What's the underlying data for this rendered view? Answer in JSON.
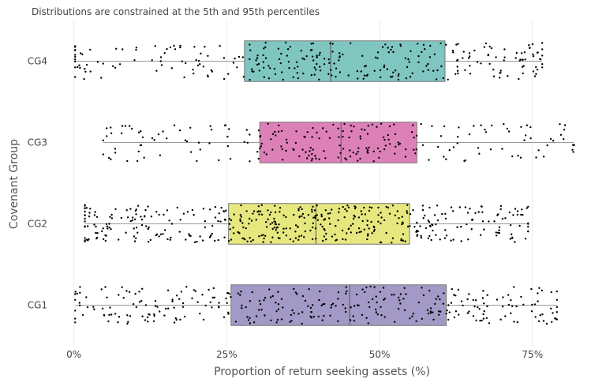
{
  "chart_data": {
    "type": "box",
    "orientation": "horizontal",
    "title": "Distributions are constrained at the 5th and 95th percentiles",
    "xlabel": "Proportion of return seeking assets (%)",
    "ylabel": "Covenant Group",
    "xlim": [
      -9.5,
      86
    ],
    "x_ticks": [
      0,
      25,
      50,
      75
    ],
    "x_tick_labels": [
      "0%",
      "25%",
      "50%",
      "75%"
    ],
    "grid": true,
    "legend": "none",
    "categories": [
      "CG4",
      "CG3",
      "CG2",
      "CG1"
    ],
    "series": [
      {
        "category": "CG4",
        "min": 0.2,
        "q1": 27.9,
        "median": 42.0,
        "q3": 60.7,
        "max": 76.6,
        "color": "#7fc6c1",
        "points": 300
      },
      {
        "category": "CG3",
        "min": 4.8,
        "q1": 30.4,
        "median": 43.7,
        "q3": 56.1,
        "max": 81.8,
        "color": "#de80b8",
        "points": 230
      },
      {
        "category": "CG2",
        "min": 1.8,
        "q1": 25.3,
        "median": 39.6,
        "q3": 54.9,
        "max": 74.3,
        "color": "#e6e87f",
        "points": 470
      },
      {
        "category": "CG1",
        "min": 0.2,
        "q1": 25.7,
        "median": 45.1,
        "q3": 60.9,
        "max": 79.0,
        "color": "#a399c6",
        "points": 330
      }
    ]
  }
}
